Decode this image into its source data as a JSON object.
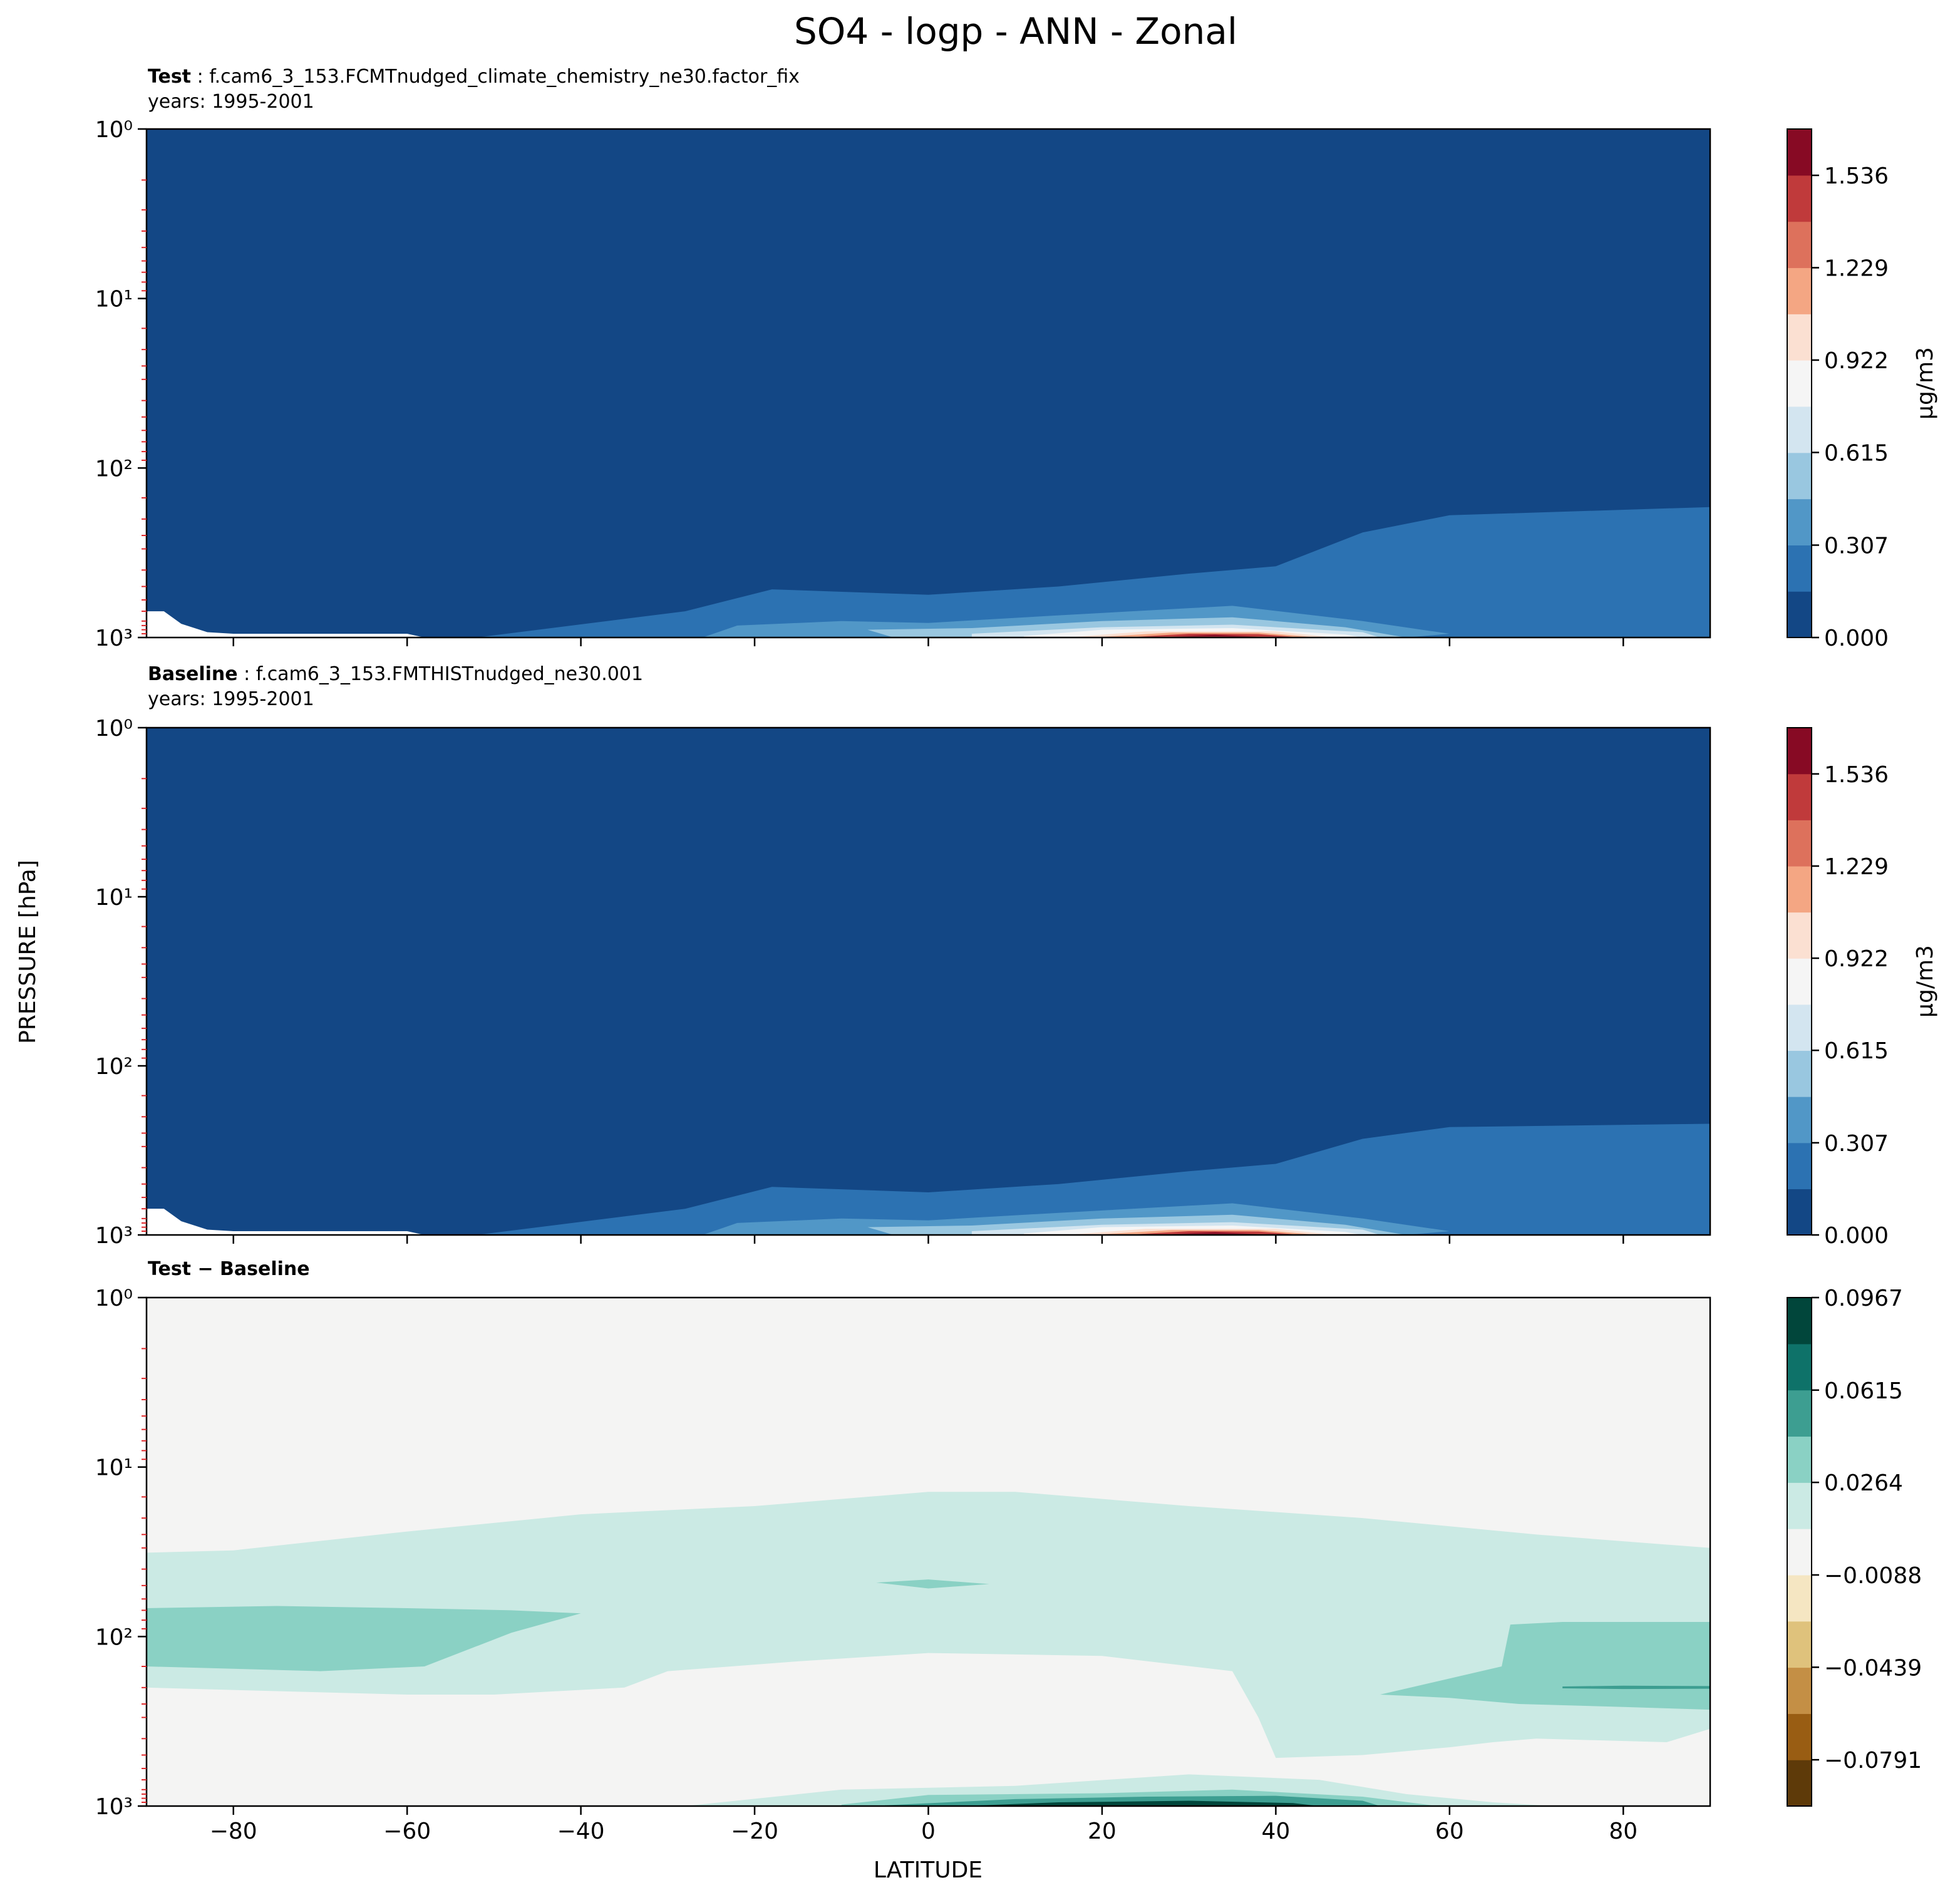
{
  "figure": {
    "suptitle": "SO4 - logp - ANN - Zonal",
    "ylabel": "PRESSURE [hPa]",
    "xlabel": "LATITUDE"
  },
  "chart_data": [
    {
      "type": "heatmap",
      "panel": "test",
      "title_bold": "Test",
      "title_rest": ": f.cam6_3_153.FCMTnudged_climate_chemistry_ne30.factor_fix",
      "years": "years: 1995-2001",
      "x_label": "LATITUDE",
      "y_label": "PRESSURE [hPa]",
      "y_scale": "log",
      "y_inverted": true,
      "xlim": [
        -90,
        90
      ],
      "ylim": [
        1000,
        1
      ],
      "x_ticks": [
        -80,
        -60,
        -40,
        -20,
        0,
        20,
        40,
        60,
        80
      ],
      "y_ticks": [
        1,
        10,
        100,
        1000
      ],
      "colormap": "RdBu_r",
      "colorbar": {
        "label": "μg/m3",
        "vmin": 0.0,
        "vmax": 1.69,
        "ticks": [
          "0.000",
          "0.307",
          "0.615",
          "0.922",
          "1.229",
          "1.536"
        ],
        "tick_values": [
          0.0,
          0.307,
          0.615,
          0.922,
          1.229,
          1.536
        ],
        "levels": [
          "#134785",
          "#2c72b2",
          "#5197c7",
          "#99c7e0",
          "#d3e5f0",
          "#f5f5f5",
          "#fbe0d2",
          "#f4a683",
          "#dd715c",
          "#c03a3b",
          "#870a24"
        ]
      },
      "features": [
        {
          "level": 0.16,
          "description": "lower-troposphere layer",
          "points": [
            [
              -28,
              700
            ],
            [
              -18,
              520
            ],
            [
              0,
              560
            ],
            [
              15,
              500
            ],
            [
              30,
              420
            ],
            [
              40,
              380
            ],
            [
              50,
              240
            ],
            [
              60,
              190
            ],
            [
              90,
              170
            ],
            [
              90,
              1000
            ],
            [
              -52,
              1000
            ]
          ]
        },
        {
          "level": 0.38,
          "points": [
            [
              -22,
              850
            ],
            [
              -10,
              800
            ],
            [
              0,
              820
            ],
            [
              15,
              740
            ],
            [
              35,
              650
            ],
            [
              50,
              800
            ],
            [
              60,
              950
            ],
            [
              55,
              1000
            ],
            [
              -26,
              1000
            ]
          ]
        },
        {
          "level": 0.58,
          "points": [
            [
              -7,
              900
            ],
            [
              5,
              880
            ],
            [
              20,
              800
            ],
            [
              35,
              760
            ],
            [
              48,
              870
            ],
            [
              55,
              1000
            ],
            [
              -4,
              1000
            ]
          ]
        },
        {
          "level": 0.75,
          "points": [
            [
              5,
              950
            ],
            [
              20,
              870
            ],
            [
              35,
              840
            ],
            [
              50,
              930
            ],
            [
              52,
              1000
            ],
            [
              5,
              1000
            ]
          ]
        },
        {
          "level": 0.92,
          "points": [
            [
              11,
              980
            ],
            [
              20,
              900
            ],
            [
              35,
              880
            ],
            [
              48,
              960
            ],
            [
              50,
              1000
            ],
            [
              11,
              1000
            ]
          ]
        },
        {
          "level": 1.05,
          "points": [
            [
              17,
              990
            ],
            [
              25,
              920
            ],
            [
              40,
              920
            ],
            [
              46,
              990
            ],
            [
              17,
              1000
            ]
          ]
        },
        {
          "level": 1.2,
          "points": [
            [
              20,
              990
            ],
            [
              28,
              935
            ],
            [
              38,
              935
            ],
            [
              44,
              990
            ]
          ]
        },
        {
          "level": 1.4,
          "points": [
            [
              24,
              990
            ],
            [
              30,
              950
            ],
            [
              38,
              955
            ],
            [
              42,
              990
            ]
          ]
        },
        {
          "level": 1.62,
          "points": [
            [
              28,
              985
            ],
            [
              33,
              965
            ],
            [
              38,
              990
            ]
          ]
        }
      ]
    },
    {
      "type": "heatmap",
      "panel": "baseline",
      "title_bold": "Baseline",
      "title_rest": ": f.cam6_3_153.FMTHISTnudged_ne30.001",
      "years": "years: 1995-2001",
      "x_label": "LATITUDE",
      "y_label": "PRESSURE [hPa]",
      "y_scale": "log",
      "y_inverted": true,
      "xlim": [
        -90,
        90
      ],
      "ylim": [
        1000,
        1
      ],
      "x_ticks": [
        -80,
        -60,
        -40,
        -20,
        0,
        20,
        40,
        60,
        80
      ],
      "y_ticks": [
        1,
        10,
        100,
        1000
      ],
      "colormap": "RdBu_r",
      "colorbar": {
        "label": "μg/m3",
        "vmin": 0.0,
        "vmax": 1.69,
        "ticks": [
          "0.000",
          "0.307",
          "0.615",
          "0.922",
          "1.229",
          "1.536"
        ],
        "tick_values": [
          0.0,
          0.307,
          0.615,
          0.922,
          1.229,
          1.536
        ],
        "levels": [
          "#134785",
          "#2c72b2",
          "#5197c7",
          "#99c7e0",
          "#d3e5f0",
          "#f5f5f5",
          "#fbe0d2",
          "#f4a683",
          "#dd715c",
          "#c03a3b",
          "#870a24"
        ]
      },
      "features": [
        {
          "level": 0.16,
          "points": [
            [
              -28,
              700
            ],
            [
              -18,
              520
            ],
            [
              0,
              560
            ],
            [
              15,
              500
            ],
            [
              30,
              420
            ],
            [
              40,
              380
            ],
            [
              50,
              270
            ],
            [
              60,
              230
            ],
            [
              90,
              220
            ],
            [
              90,
              1000
            ],
            [
              -52,
              1000
            ]
          ]
        },
        {
          "level": 0.38,
          "points": [
            [
              -22,
              850
            ],
            [
              -10,
              800
            ],
            [
              0,
              820
            ],
            [
              15,
              740
            ],
            [
              35,
              650
            ],
            [
              50,
              800
            ],
            [
              60,
              950
            ],
            [
              55,
              1000
            ],
            [
              -26,
              1000
            ]
          ]
        },
        {
          "level": 0.58,
          "points": [
            [
              -7,
              900
            ],
            [
              5,
              880
            ],
            [
              20,
              800
            ],
            [
              35,
              760
            ],
            [
              48,
              870
            ],
            [
              55,
              1000
            ],
            [
              -4,
              1000
            ]
          ]
        },
        {
          "level": 0.75,
          "points": [
            [
              5,
              950
            ],
            [
              20,
              870
            ],
            [
              35,
              840
            ],
            [
              50,
              930
            ],
            [
              52,
              1000
            ],
            [
              5,
              1000
            ]
          ]
        },
        {
          "level": 0.92,
          "points": [
            [
              11,
              980
            ],
            [
              20,
              900
            ],
            [
              35,
              880
            ],
            [
              48,
              960
            ],
            [
              50,
              1000
            ],
            [
              11,
              1000
            ]
          ]
        },
        {
          "level": 1.05,
          "points": [
            [
              17,
              990
            ],
            [
              25,
              920
            ],
            [
              40,
              920
            ],
            [
              46,
              990
            ],
            [
              17,
              1000
            ]
          ]
        },
        {
          "level": 1.2,
          "points": [
            [
              20,
              990
            ],
            [
              28,
              935
            ],
            [
              38,
              935
            ],
            [
              44,
              990
            ]
          ]
        },
        {
          "level": 1.4,
          "points": [
            [
              24,
              990
            ],
            [
              30,
              950
            ],
            [
              38,
              955
            ],
            [
              42,
              990
            ]
          ]
        },
        {
          "level": 1.62,
          "points": [
            [
              28,
              985
            ],
            [
              33,
              965
            ],
            [
              38,
              990
            ]
          ]
        }
      ]
    },
    {
      "type": "heatmap",
      "panel": "difference",
      "title_bold": "Test − Baseline",
      "x_label": "LATITUDE",
      "y_label": "PRESSURE [hPa]",
      "y_scale": "log",
      "y_inverted": true,
      "xlim": [
        -90,
        90
      ],
      "ylim": [
        1000,
        1
      ],
      "x_ticks": [
        -80,
        -60,
        -40,
        -20,
        0,
        20,
        40,
        60,
        80
      ],
      "y_ticks": [
        1,
        10,
        100,
        1000
      ],
      "colormap": "BrBG",
      "colorbar": {
        "label": "",
        "vmin": -0.0967,
        "vmax": 0.0967,
        "ticks": [
          "−0.0791",
          "−0.0439",
          "−0.0088",
          "0.0264",
          "0.0615",
          "0.0967"
        ],
        "tick_values": [
          -0.0791,
          -0.0439,
          -0.0088,
          0.0264,
          0.0615,
          0.0967
        ],
        "levels": [
          "#5e3a09",
          "#995d13",
          "#c48f45",
          "#dfc27c",
          "#f5e6c2",
          "#f4f4f3",
          "#cbeae4",
          "#8ad1c4",
          "#3d9e91",
          "#0e7269",
          "#01463b"
        ]
      },
      "features": [
        {
          "level": 0.014,
          "description": "broad weak positive band",
          "points": [
            [
              -90,
              32
            ],
            [
              -80,
              31
            ],
            [
              -60,
              24
            ],
            [
              -40,
              19
            ],
            [
              -20,
              17
            ],
            [
              0,
              14
            ],
            [
              10,
              14
            ],
            [
              30,
              17
            ],
            [
              50,
              20
            ],
            [
              70,
              25
            ],
            [
              90,
              30
            ],
            [
              90,
              350
            ],
            [
              85,
              420
            ],
            [
              70,
              400
            ],
            [
              65,
              420
            ],
            [
              60,
              450
            ],
            [
              50,
              500
            ],
            [
              40,
              520
            ],
            [
              38,
              300
            ],
            [
              35,
              160
            ],
            [
              20,
              130
            ],
            [
              0,
              125
            ],
            [
              -15,
              140
            ],
            [
              -30,
              160
            ],
            [
              -35,
              200
            ],
            [
              -50,
              220
            ],
            [
              -60,
              220
            ],
            [
              -75,
              210
            ],
            [
              -90,
              200
            ]
          ]
        },
        {
          "level": 0.036,
          "points": [
            [
              -90,
              68
            ],
            [
              -75,
              66
            ],
            [
              -60,
              68
            ],
            [
              -48,
              70
            ],
            [
              -40,
              73
            ],
            [
              -48,
              95
            ],
            [
              -58,
              150
            ],
            [
              -70,
              160
            ],
            [
              -80,
              155
            ],
            [
              -90,
              150
            ]
          ]
        },
        {
          "level": 0.036,
          "points": [
            [
              -6,
              48
            ],
            [
              0,
              46
            ],
            [
              7,
              49
            ],
            [
              0,
              52
            ]
          ]
        },
        {
          "level": 0.036,
          "points": [
            [
              67,
              85
            ],
            [
              73,
              82
            ],
            [
              90,
              82
            ],
            [
              90,
              270
            ],
            [
              80,
              260
            ],
            [
              68,
              250
            ],
            [
              60,
              230
            ],
            [
              52,
              220
            ],
            [
              66,
              150
            ]
          ]
        },
        {
          "level": 0.055,
          "points": [
            [
              73,
              197
            ],
            [
              80,
              195
            ],
            [
              90,
              196
            ],
            [
              90,
              203
            ],
            [
              80,
              204
            ],
            [
              73,
              202
            ]
          ]
        },
        {
          "level": 0.014,
          "points": [
            [
              -28,
              1000
            ],
            [
              -10,
              800
            ],
            [
              10,
              760
            ],
            [
              30,
              650
            ],
            [
              45,
              700
            ],
            [
              55,
              850
            ],
            [
              65,
              950
            ],
            [
              72,
              1000
            ]
          ]
        },
        {
          "level": 0.036,
          "points": [
            [
              -10,
              980
            ],
            [
              0,
              860
            ],
            [
              20,
              840
            ],
            [
              35,
              800
            ],
            [
              50,
              880
            ],
            [
              58,
              990
            ],
            [
              -10,
              1000
            ]
          ]
        },
        {
          "level": 0.055,
          "points": [
            [
              -5,
              990
            ],
            [
              10,
              910
            ],
            [
              25,
              880
            ],
            [
              40,
              870
            ],
            [
              50,
              930
            ],
            [
              52,
              1000
            ],
            [
              -5,
              1000
            ]
          ]
        },
        {
          "level": 0.08,
          "points": [
            [
              5,
              995
            ],
            [
              15,
              950
            ],
            [
              30,
              930
            ],
            [
              42,
              960
            ],
            [
              45,
              1000
            ],
            [
              5,
              1000
            ]
          ]
        }
      ]
    }
  ]
}
